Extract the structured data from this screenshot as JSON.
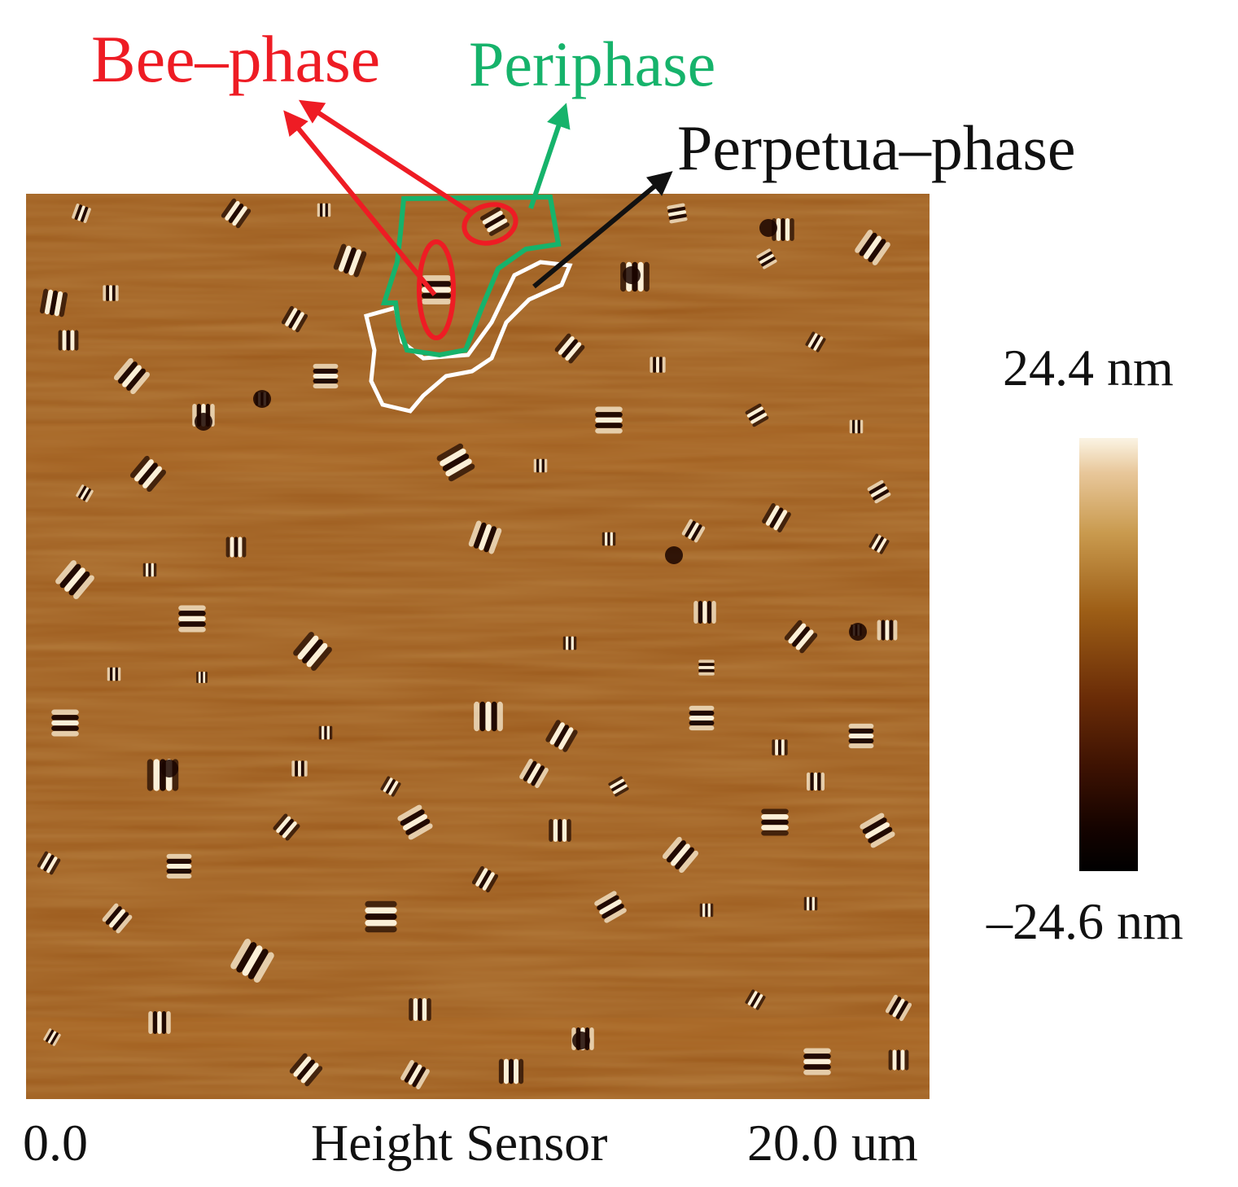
{
  "image": {
    "description_kind": "afm-height-map",
    "palette": {
      "background": "#ffffff",
      "surface": "#9c5a1c",
      "bright_fringe": "#fff7e0",
      "dark_fringe": "#1a0500",
      "bee_phase_color": "#ee1c24",
      "periphase_color": "#16b36b",
      "perpetua_phase_color": "#111111",
      "perpetua_outline_color": "#ffffff"
    }
  },
  "annotations": {
    "bee_phase": "Bee–phase",
    "periphase": "Periphase",
    "perpetua_phase": "Perpetua–phase"
  },
  "colorbar": {
    "max_label": "24.4 nm",
    "min_label": "–24.6 nm",
    "max_value_nm": 24.4,
    "min_value_nm": -24.6
  },
  "axis": {
    "x_start": "0.0",
    "channel": "Height Sensor",
    "x_end": "20.0 um"
  }
}
